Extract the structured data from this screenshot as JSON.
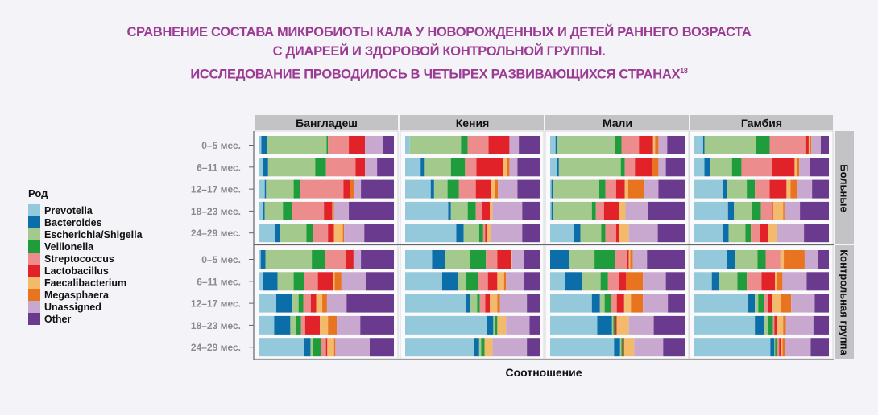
{
  "title": {
    "line1": "СРАВНЕНИЕ СОСТАВА МИКРОБИОТЫ КАЛА У НОВОРОЖДЕННЫХ И ДЕТЕЙ РАННЕГО ВОЗРАСТА",
    "line2": "С ДИАРЕЕЙ И ЗДОРОВОЙ КОНТРОЛЬНОЙ ГРУППЫ.",
    "line3": "ИССЛЕДОВАНИЕ ПРОВОДИЛОСЬ В ЧЕТЫРЕХ РАЗВИВАЮЩИХСЯ СТРАНАХ",
    "footnote": "18"
  },
  "chart_data": {
    "type": "bar",
    "orientation": "horizontal",
    "stacked": true,
    "normalized": true,
    "xlabel": "Соотношение",
    "legend_title": "Род",
    "legend_position": "left",
    "genera": [
      "Prevotella",
      "Bacteroides",
      "Escherichia/Shigella",
      "Veillonella",
      "Streptococcus",
      "Lactobacillus",
      "Faecalibacterium",
      "Megasphaera",
      "Unassigned",
      "Other"
    ],
    "colors": [
      "#93c9da",
      "#0b6ea8",
      "#a4c98c",
      "#1f9c3b",
      "#ec8c8c",
      "#e12228",
      "#f4ba6c",
      "#e8741f",
      "#c9a8d0",
      "#6a3a8e"
    ],
    "countries": [
      "Бангладеш",
      "Кения",
      "Мали",
      "Гамбия"
    ],
    "groups": [
      "Больные",
      "Контрольная группа"
    ],
    "age_groups": [
      "0–5 мес.",
      "6–11 мес.",
      "12–17 мес.",
      "18–23 мес.",
      "24–29 мес."
    ],
    "values": {
      "Бангладеш": {
        "Больные": [
          [
            1.5,
            4.5,
            44,
            1,
            15.5,
            12,
            0,
            0,
            13.5,
            8
          ],
          [
            3,
            3.5,
            35,
            8,
            22,
            7,
            0,
            0,
            9,
            12.5
          ],
          [
            4,
            1,
            20.5,
            5,
            32,
            5,
            0,
            3,
            5,
            24.5
          ],
          [
            3,
            1,
            13.5,
            7,
            23.5,
            6,
            0,
            1.5,
            11,
            33.5
          ],
          [
            11.5,
            4,
            19.5,
            5,
            11,
            4.5,
            6.5,
            1,
            15,
            22
          ]
        ],
        "Контрольная группа": [
          [
            1,
            3.5,
            34.5,
            10,
            15,
            6,
            0,
            0,
            5.5,
            24.5
          ],
          [
            2.5,
            11,
            12,
            7.5,
            10.5,
            11,
            1.5,
            5,
            18,
            21
          ],
          [
            12.5,
            12,
            4.5,
            3.5,
            5.5,
            4,
            4.5,
            3.5,
            14.5,
            35
          ],
          [
            11,
            12,
            4,
            4,
            3,
            11,
            6,
            6.5,
            17.5,
            25
          ],
          [
            33,
            5,
            2,
            6,
            3.5,
            1,
            5,
            1,
            25.5,
            18
          ]
        ]
      },
      "Кения": {
        "Больные": [
          [
            3.5,
            0,
            38,
            5,
            15.5,
            15.5,
            0,
            0,
            7,
            15.5
          ],
          [
            11.5,
            2.5,
            20,
            10.5,
            8.5,
            20,
            2.5,
            2,
            6,
            16.5
          ],
          [
            19,
            2.5,
            10,
            8.5,
            12.5,
            11.5,
            2.5,
            2.5,
            14.5,
            16.5
          ],
          [
            32,
            2,
            12.5,
            6,
            4.5,
            6,
            2,
            0,
            22,
            13
          ],
          [
            38,
            5.5,
            11.5,
            3,
            1.5,
            1.5,
            3,
            0,
            23,
            13
          ]
        ],
        "Контрольная группа": [
          [
            20,
            9.5,
            18.5,
            12,
            8.5,
            10,
            1,
            0,
            9,
            11.5
          ],
          [
            27.5,
            11.5,
            6.5,
            9,
            7,
            7,
            5,
            1.5,
            13.5,
            11.5
          ],
          [
            45,
            3,
            5.5,
            2,
            4,
            3.5,
            5.5,
            2,
            20,
            9.5
          ],
          [
            61,
            4.5,
            1.5,
            1.5,
            0,
            0,
            6.5,
            0,
            17.5,
            7.5
          ],
          [
            51,
            4,
            1.5,
            2.5,
            0,
            0,
            6,
            0,
            25.5,
            9.5
          ]
        ]
      },
      "Мали": {
        "Больные": [
          [
            4,
            1,
            43,
            5,
            13,
            10.5,
            1.5,
            2.5,
            6.5,
            13
          ],
          [
            5,
            1.5,
            46,
            3,
            7.5,
            13,
            0,
            4.5,
            5.5,
            14
          ],
          [
            1,
            1,
            34.5,
            4.5,
            8,
            6.5,
            2.5,
            11.5,
            11,
            19.5
          ],
          [
            1,
            1,
            29,
            3,
            6,
            11,
            5,
            0,
            17,
            27
          ],
          [
            17.5,
            5,
            15.5,
            3,
            8,
            2,
            7.5,
            0,
            21.5,
            20
          ]
        ],
        "Контрольная группа": [
          [
            0,
            14,
            19,
            15,
            9,
            1.5,
            1,
            2,
            10.5,
            28
          ],
          [
            11,
            12.5,
            14,
            5.5,
            8,
            5.5,
            0,
            12.5,
            17,
            14
          ],
          [
            31,
            6,
            3.5,
            5,
            4,
            5.5,
            5,
            9,
            18.5,
            12.5
          ],
          [
            35,
            11,
            1,
            1,
            0,
            1.5,
            9,
            0,
            18.5,
            23
          ],
          [
            47.5,
            4.5,
            1,
            1,
            0,
            1,
            7.5,
            0,
            21.5,
            16
          ]
        ]
      },
      "Гамбия": {
        "Больные": [
          [
            6.5,
            1,
            38,
            10.5,
            26.5,
            2.5,
            1,
            1,
            7,
            6
          ],
          [
            7.5,
            4.5,
            16,
            7,
            23,
            16.5,
            1.5,
            2,
            8,
            14
          ],
          [
            21.5,
            2.5,
            15,
            6,
            11,
            12.5,
            3,
            5,
            11,
            12.5
          ],
          [
            25,
            4.5,
            13,
            7,
            8,
            1,
            7.5,
            1,
            11.5,
            21.5
          ],
          [
            21,
            4.5,
            12.5,
            4,
            7,
            5.5,
            7,
            0,
            20,
            18.5
          ]
        ],
        "Контрольная группа": [
          [
            24,
            6,
            17,
            6,
            11,
            0,
            2.5,
            15.5,
            10,
            8
          ],
          [
            13,
            5,
            14,
            7,
            11,
            10,
            1.5,
            4,
            18,
            16.5
          ],
          [
            39.5,
            5.5,
            2.5,
            4,
            3,
            3,
            6.5,
            8,
            17.5,
            10.5
          ],
          [
            45,
            7,
            2.5,
            4,
            1,
            2,
            4.5,
            2,
            20.5,
            11.5
          ],
          [
            56.5,
            3,
            0.5,
            1.5,
            1.5,
            1.5,
            1,
            2,
            19,
            13.5
          ]
        ]
      }
    }
  }
}
